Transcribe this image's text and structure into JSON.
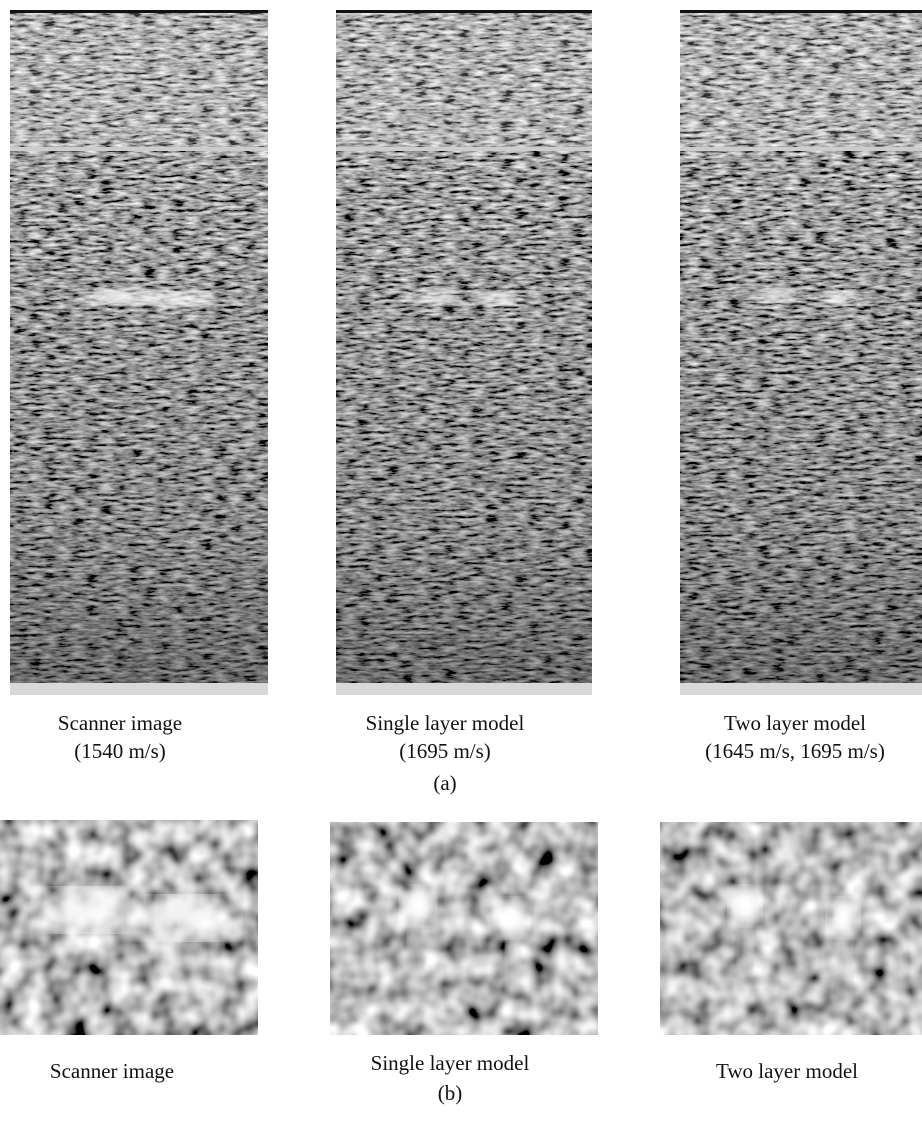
{
  "panel_a": {
    "label": "(a)",
    "images": [
      {
        "caption_lines": [
          "Scanner image",
          "(1540 m/s)"
        ]
      },
      {
        "caption_lines": [
          "Single layer model",
          "(1695 m/s)"
        ]
      },
      {
        "caption_lines": [
          "Two layer model",
          "(1645 m/s, 1695 m/s)"
        ]
      }
    ]
  },
  "panel_b": {
    "label": "(b)",
    "images": [
      {
        "caption_lines": [
          "Scanner image"
        ]
      },
      {
        "caption_lines": [
          "Single layer model"
        ]
      },
      {
        "caption_lines": [
          "Two layer model"
        ]
      }
    ]
  }
}
